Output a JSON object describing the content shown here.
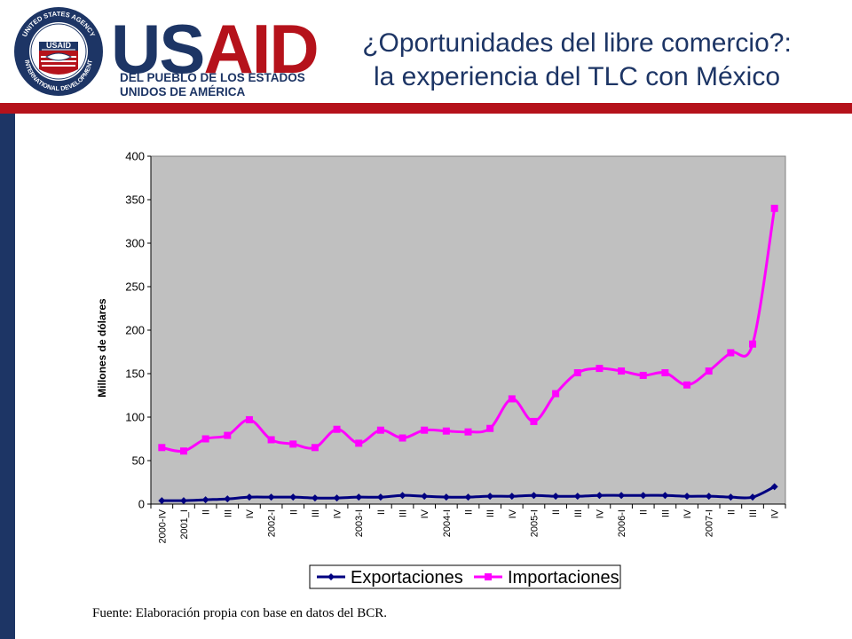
{
  "header": {
    "logo_text_1": "US",
    "logo_text_2": "AID",
    "logo_sub_1": "DEL PUEBLO DE LOS ESTADOS",
    "logo_sub_2": "UNIDOS DE AMÉRICA",
    "seal_ring_text": "UNITED STATES AGENCY · INTERNATIONAL DEVELOPMENT ·",
    "seal_center": "USAID",
    "title_line1": "¿Oportunidades del libre comercio?:",
    "title_line2": "la experiencia del TLC con México"
  },
  "colors": {
    "navy": "#1d3565",
    "red": "#b5121b",
    "plot_bg": "#c0c0c0",
    "exports": "#000080",
    "imports": "#ff00ff"
  },
  "chart_data": {
    "type": "line",
    "ylabel": "Millones de dólares",
    "xlabel": "",
    "ylim": [
      0,
      400
    ],
    "yticks": [
      0,
      50,
      100,
      150,
      200,
      250,
      300,
      350,
      400
    ],
    "grid": false,
    "legend_position": "bottom",
    "categories": [
      "2000-IV",
      "2001_I",
      "II",
      "III",
      "IV",
      "2002-I",
      "II",
      "III",
      "IV",
      "2003-I",
      "II",
      "III",
      "IV",
      "2004-I",
      "II",
      "III",
      "IV",
      "2005-I",
      "II",
      "III",
      "IV",
      "2006-I",
      "II",
      "III",
      "IV",
      "2007-I",
      "II",
      "III",
      "IV"
    ],
    "series": [
      {
        "name": "Exportaciones",
        "color": "#000080",
        "marker": "diamond",
        "values": [
          4,
          4,
          5,
          6,
          8,
          8,
          8,
          7,
          7,
          8,
          8,
          10,
          9,
          8,
          8,
          9,
          9,
          10,
          9,
          9,
          10,
          10,
          10,
          10,
          9,
          9,
          8,
          8,
          20
        ]
      },
      {
        "name": "Importaciones",
        "color": "#ff00ff",
        "marker": "square",
        "values": [
          65,
          61,
          75,
          79,
          97,
          74,
          69,
          65,
          86,
          70,
          85,
          76,
          85,
          84,
          83,
          87,
          121,
          95,
          127,
          151,
          156,
          153,
          148,
          151,
          137,
          153,
          174,
          184,
          340
        ]
      }
    ]
  },
  "footer": {
    "source": "Fuente: Elaboración propia con base en datos del BCR."
  }
}
